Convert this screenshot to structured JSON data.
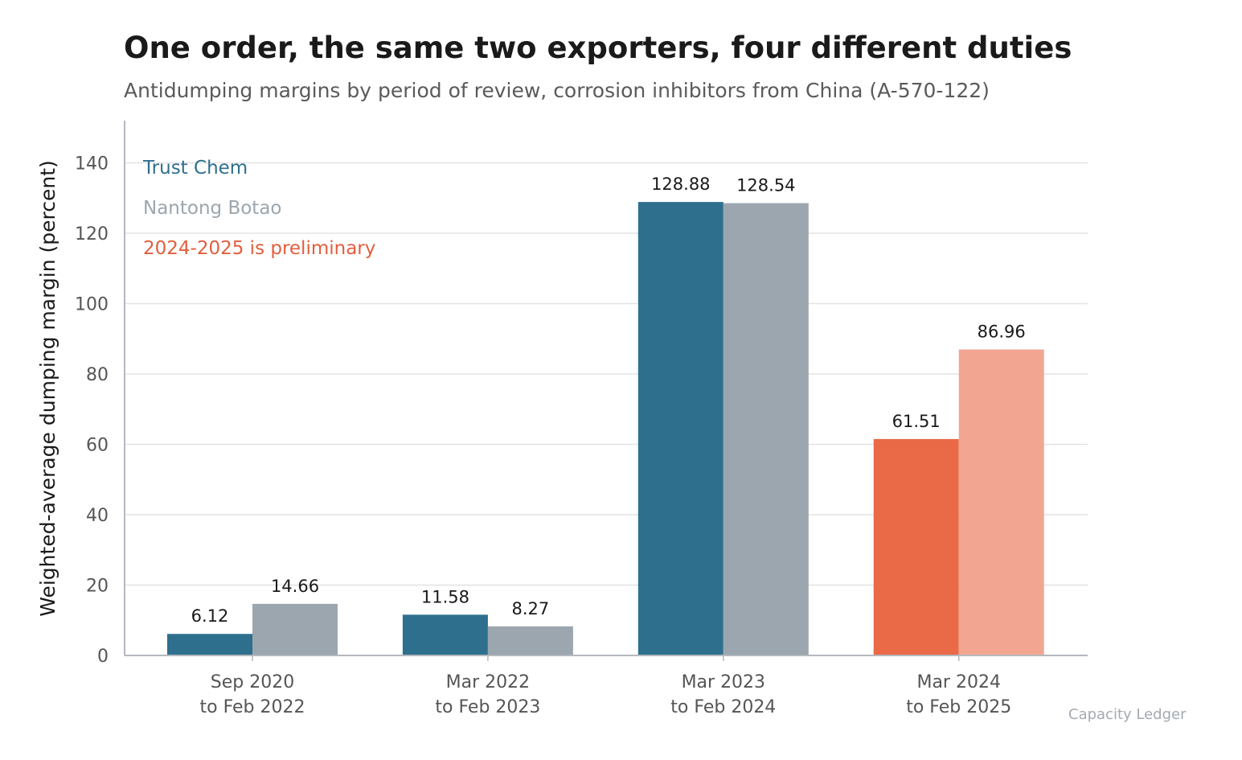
{
  "title": "One order, the same two exporters, four different duties",
  "subtitle": "Antidumping margins by period of review, corrosion inhibitors from China (A-570-122)",
  "source": "Capacity Ledger",
  "chart_data": {
    "type": "bar",
    "title": "One order, the same two exporters, four different duties",
    "subtitle": "Antidumping margins by period of review, corrosion inhibitors from China (A-570-122)",
    "xlabel": "",
    "ylabel": "Weighted-average dumping margin (percent)",
    "ylim": [
      0,
      152
    ],
    "yticks": [
      0,
      20,
      40,
      60,
      80,
      100,
      120,
      140
    ],
    "grid": true,
    "legend_placement": "top-left",
    "categories": [
      [
        "Sep 2020",
        "to Feb 2022"
      ],
      [
        "Mar 2022",
        "to Feb 2023"
      ],
      [
        "Mar 2023",
        "to Feb 2024"
      ],
      [
        "Mar 2024",
        "to Feb 2025"
      ]
    ],
    "series": [
      {
        "name": "Trust Chem",
        "values": [
          6.12,
          11.58,
          128.88,
          61.51
        ],
        "labels": [
          "6.12",
          "11.58",
          "128.88",
          "61.51"
        ],
        "color": "#2e6f8e"
      },
      {
        "name": "Nantong Botao",
        "values": [
          14.66,
          8.27,
          128.54,
          86.96
        ],
        "labels": [
          "14.66",
          "8.27",
          "128.54",
          "86.96"
        ],
        "color": "#9ca6ae"
      }
    ],
    "preliminary": {
      "category_index": 3,
      "note": "2024-2025 is preliminary",
      "colors": [
        "#ea6947",
        "#f2a692"
      ]
    },
    "colors": {
      "grid": "#e3e3e3",
      "axis": "#b4b9be",
      "note": "#e25e3e"
    }
  }
}
